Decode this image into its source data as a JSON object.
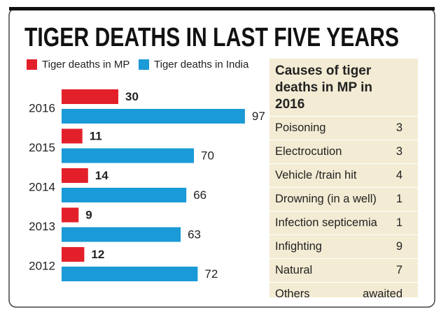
{
  "chart_data": {
    "type": "hbar",
    "title": "TIGER DEATHS IN LAST FIVE YEARS",
    "categories": [
      "2016",
      "2015",
      "2014",
      "2013",
      "2012"
    ],
    "series": [
      {
        "name": "Tiger deaths in MP",
        "color": "#e3202a",
        "values": [
          30,
          11,
          14,
          9,
          12
        ]
      },
      {
        "name": "Tiger deaths in India",
        "color": "#1a9ad6",
        "values": [
          97,
          70,
          66,
          63,
          72
        ]
      }
    ],
    "xlim": [
      0,
      100
    ]
  },
  "table": {
    "title": "Causes of tiger deaths in MP in 2016",
    "rows": [
      {
        "cause": "Poisoning",
        "count": 3
      },
      {
        "cause": "Electrocution",
        "count": 3
      },
      {
        "cause": "Vehicle /train hit",
        "count": 4
      },
      {
        "cause": "Drowning (in a well)",
        "count": 1
      },
      {
        "cause": "Infection septicemia",
        "count": 1
      },
      {
        "cause": "Infighting",
        "count": 9
      },
      {
        "cause": "Natural",
        "count": 7
      },
      {
        "cause": "Others",
        "count": "awaited"
      }
    ]
  }
}
